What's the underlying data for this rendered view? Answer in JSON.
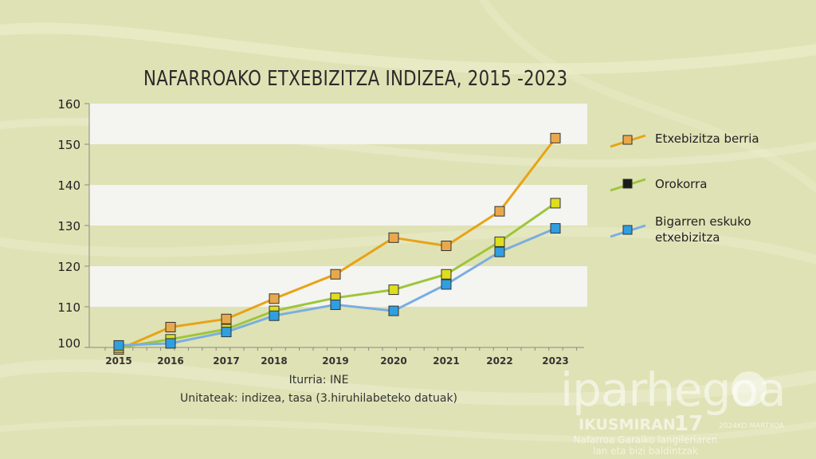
{
  "chart_data": {
    "type": "line",
    "title": "NAFARROAKO ETXEBIZITZA INDIZEA, 2015 -2023",
    "x": [
      "2015",
      "2016",
      "2017",
      "2018",
      "2019",
      "2020",
      "2021",
      "2022",
      "2023"
    ],
    "ylim": [
      100,
      160
    ],
    "yticks": [
      "100",
      "110",
      "120",
      "130",
      "140",
      "150",
      "160"
    ],
    "grid": "alternating-bands",
    "legend_position": "right",
    "series": [
      {
        "name": "Etxebizitza berria",
        "color": "#e8a317",
        "marker": "#e8a94c",
        "values": [
          99.5,
          105.0,
          107.0,
          112.0,
          118.0,
          127.0,
          125.0,
          133.5,
          151.5
        ]
      },
      {
        "name": "Orokorra",
        "color": "#9ec53b",
        "marker": "#dede1e",
        "legend_marker": "#1a1a1a",
        "values": [
          100.0,
          102.0,
          104.5,
          109.0,
          112.2,
          114.2,
          118.0,
          126.0,
          135.5
        ]
      },
      {
        "name": "Bigarren eskuko etxebizitza",
        "legend_lines": [
          "Bigarren eskuko",
          "etxebizitza"
        ],
        "color": "#7aaee0",
        "marker": "#2f9fe0",
        "values": [
          100.5,
          101.0,
          103.8,
          107.8,
          110.5,
          109.0,
          115.5,
          123.5,
          129.3
        ]
      }
    ]
  },
  "source": {
    "line1": "Iturria: INE",
    "line2": "Unitateak: indizea, tasa (3.hiruhilabeteko datuak)"
  },
  "branding": {
    "main": "iparhegoa",
    "sub": "IKUSMIRAN",
    "number": "17",
    "date": "2024KO MARTXOA",
    "tagline1": "Nafarroa Garaiko langileriaren",
    "tagline2": "lan eta bizi baldintzak"
  }
}
